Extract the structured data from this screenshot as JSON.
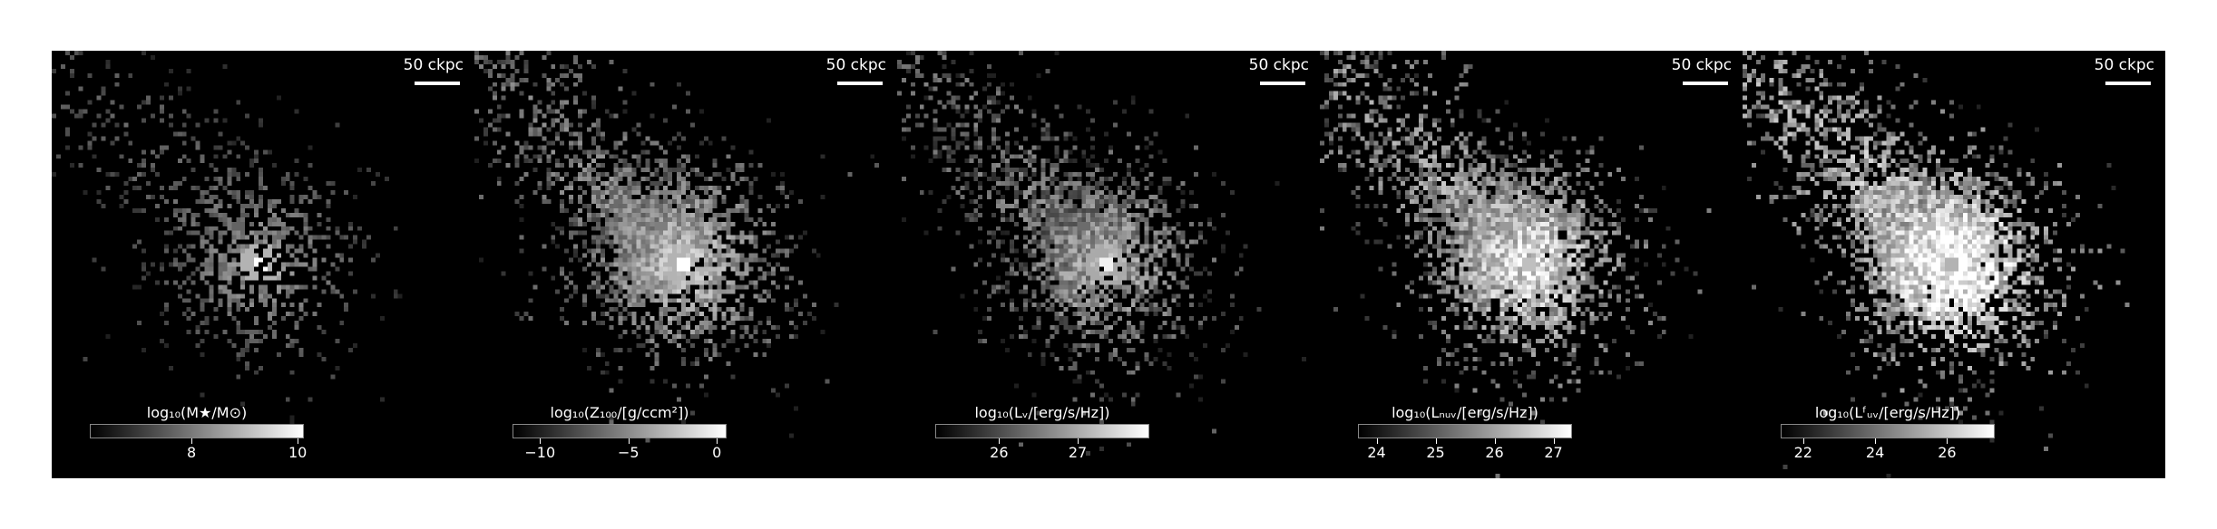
{
  "chart_data": [
    {
      "type": "heatmap",
      "scalebar": "50 ckpc",
      "colorbar_label": "log₁₀(M★/M⊙)",
      "cbar_range": [
        6.1,
        10.1
      ],
      "ticks": [
        {
          "value": 8,
          "label": "8"
        },
        {
          "value": 10,
          "label": "10"
        }
      ],
      "colormap": "gray",
      "seed": 11,
      "density": 0.35,
      "brightness": 0.55,
      "core": 1.0,
      "noise": 0.2
    },
    {
      "type": "heatmap",
      "scalebar": "50 ckpc",
      "colorbar_label": "log₁₀(Z₁₀₀/[g/ccm²])",
      "cbar_range": [
        -11.5,
        0.5
      ],
      "ticks": [
        {
          "value": -10,
          "label": "−10"
        },
        {
          "value": -5,
          "label": "−5"
        },
        {
          "value": 0,
          "label": "0"
        }
      ],
      "colormap": "gray",
      "seed": 23,
      "density": 0.75,
      "brightness": 0.7,
      "core": 1.0,
      "noise": 0.35
    },
    {
      "type": "heatmap",
      "scalebar": "50 ckpc",
      "colorbar_label": "log₁₀(Lᵥ/[erg/s/Hz])",
      "cbar_range": [
        25.2,
        27.9
      ],
      "ticks": [
        {
          "value": 26,
          "label": "26"
        },
        {
          "value": 27,
          "label": "27"
        }
      ],
      "colormap": "gray",
      "seed": 37,
      "density": 0.7,
      "brightness": 0.6,
      "core": 0.95,
      "noise": 0.4
    },
    {
      "type": "heatmap",
      "scalebar": "50 ckpc",
      "colorbar_label": "log₁₀(Lₙᵤᵥ/[erg/s/Hz])",
      "cbar_range": [
        23.7,
        27.3
      ],
      "ticks": [
        {
          "value": 24,
          "label": "24"
        },
        {
          "value": 25,
          "label": "25"
        },
        {
          "value": 26,
          "label": "26"
        },
        {
          "value": 27,
          "label": "27"
        }
      ],
      "colormap": "gray",
      "seed": 53,
      "density": 0.85,
      "brightness": 0.85,
      "core": 0.75,
      "noise": 0.45
    },
    {
      "type": "heatmap",
      "scalebar": "50 ckpc",
      "colorbar_label": "log₁₀(Lᶠᵤᵥ/[erg/s/Hz])",
      "cbar_range": [
        21.4,
        27.3
      ],
      "ticks": [
        {
          "value": 22,
          "label": "22"
        },
        {
          "value": 24,
          "label": "24"
        },
        {
          "value": 26,
          "label": "26"
        }
      ],
      "colormap": "gray",
      "seed": 71,
      "density": 0.95,
      "brightness": 1.0,
      "core": 0.7,
      "noise": 0.5
    }
  ]
}
